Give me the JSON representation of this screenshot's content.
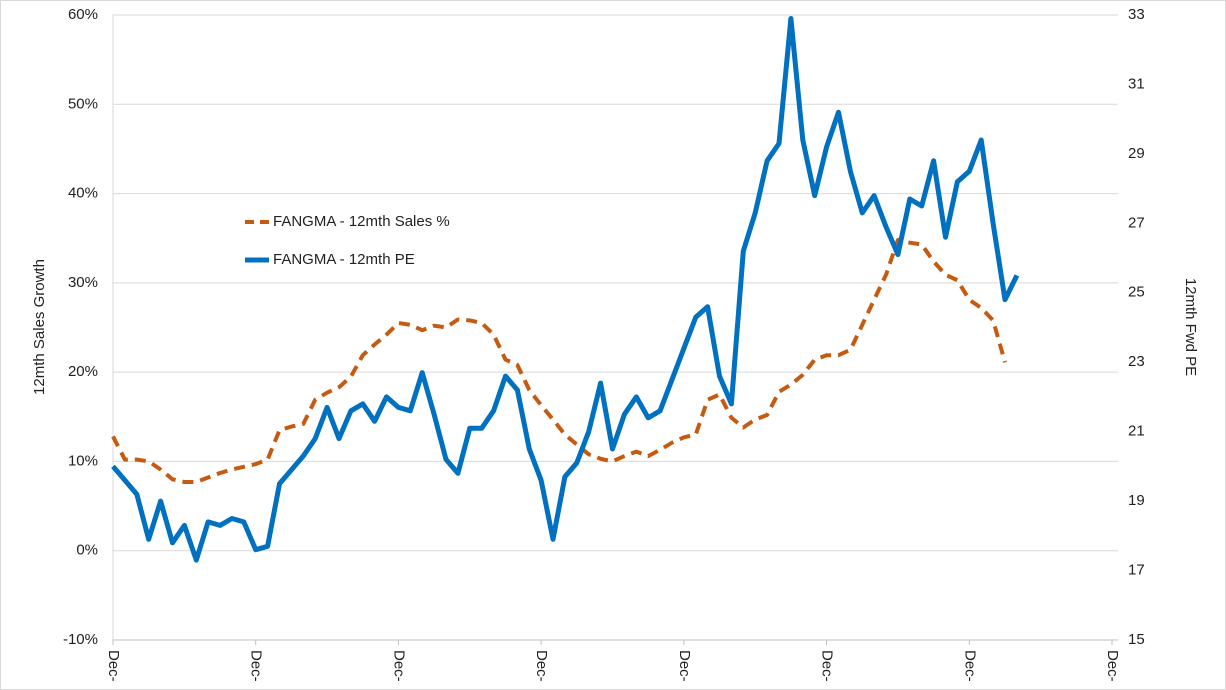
{
  "chart_data": {
    "type": "line",
    "categories": [
      "Dec-",
      null,
      null,
      null,
      null,
      null,
      null,
      null,
      null,
      null,
      null,
      null,
      "Dec-",
      null,
      null,
      null,
      null,
      null,
      null,
      null,
      null,
      null,
      null,
      null,
      "Dec-",
      null,
      null,
      null,
      null,
      null,
      null,
      null,
      null,
      null,
      null,
      null,
      "Dec-",
      null,
      null,
      null,
      null,
      null,
      null,
      null,
      null,
      null,
      null,
      null,
      "Dec-",
      null,
      null,
      null,
      null,
      null,
      null,
      null,
      null,
      null,
      null,
      null,
      "Dec-",
      null,
      null,
      null,
      null,
      null,
      null,
      null,
      null,
      null,
      null,
      null,
      "Dec-",
      null,
      null,
      null,
      null,
      null,
      null,
      null,
      null,
      null,
      null,
      null,
      "Dec-"
    ],
    "series": [
      {
        "name": "FANGMA - 12mth Sales %",
        "color": "#c55a11",
        "dash": true,
        "values": [
          12.8,
          10.2,
          10.2,
          10.0,
          9.1,
          8.0,
          7.7,
          7.7,
          8.2,
          8.7,
          9.1,
          9.4,
          9.7,
          10.2,
          13.5,
          13.9,
          14.2,
          16.9,
          17.7,
          18.3,
          19.5,
          21.9,
          23.1,
          24.2,
          25.5,
          25.3,
          24.7,
          25.2,
          25.0,
          25.9,
          25.8,
          25.5,
          24.2,
          21.4,
          20.8,
          18.0,
          16.3,
          14.7,
          13.0,
          11.9,
          10.8,
          10.3,
          10.0,
          10.6,
          11.1,
          10.6,
          11.3,
          12.1,
          12.7,
          13.0,
          16.9,
          17.5,
          14.9,
          13.8,
          14.7,
          15.2,
          17.8,
          18.6,
          19.7,
          21.4,
          21.9,
          21.9,
          22.5,
          25.3,
          28.1,
          30.9,
          34.8,
          34.5,
          34.3,
          32.4,
          30.9,
          30.3,
          28.1,
          27.2,
          25.8,
          21.1,
          null,
          null,
          null,
          null,
          null,
          null,
          null,
          null,
          null
        ]
      },
      {
        "name": "FANGMA - 12mth PE",
        "color": "#0070c0",
        "axis": "y2",
        "values": [
          20.0,
          19.6,
          19.2,
          17.9,
          19.0,
          17.8,
          18.3,
          17.3,
          18.4,
          18.3,
          18.5,
          18.4,
          17.6,
          17.7,
          19.5,
          19.9,
          20.3,
          20.8,
          21.7,
          20.8,
          21.6,
          21.8,
          21.3,
          22.0,
          21.7,
          21.6,
          22.7,
          21.5,
          20.2,
          19.8,
          21.1,
          21.1,
          21.6,
          22.6,
          22.2,
          20.5,
          19.6,
          17.9,
          19.7,
          20.1,
          21.0,
          22.4,
          20.5,
          21.5,
          22.0,
          21.4,
          21.6,
          22.5,
          23.4,
          24.3,
          24.6,
          22.6,
          21.8,
          26.2,
          27.3,
          28.8,
          29.3,
          32.9,
          29.4,
          27.8,
          29.2,
          30.2,
          28.5,
          27.3,
          27.8,
          26.9,
          26.1,
          27.7,
          27.5,
          28.8,
          26.6,
          28.2,
          28.5,
          29.4,
          27.0,
          24.8,
          25.5,
          null,
          null,
          null,
          null,
          null,
          null,
          null,
          null
        ]
      }
    ],
    "ylabel": "12mth Sales Growth",
    "y2label": "12mth Fwd PE",
    "ylim": [
      -10,
      60
    ],
    "yticks": [
      {
        "value": -10,
        "label": "-10%"
      },
      {
        "value": 0,
        "label": "0%"
      },
      {
        "value": 10,
        "label": "10%"
      },
      {
        "value": 20,
        "label": "20%"
      },
      {
        "value": 30,
        "label": "30%"
      },
      {
        "value": 40,
        "label": "40%"
      },
      {
        "value": 50,
        "label": "50%"
      },
      {
        "value": 60,
        "label": "60%"
      }
    ],
    "y2lim": [
      15,
      33
    ],
    "y2ticks": [
      15,
      17,
      19,
      21,
      23,
      25,
      27,
      29,
      31,
      33
    ],
    "grid": true,
    "legend": "left"
  }
}
